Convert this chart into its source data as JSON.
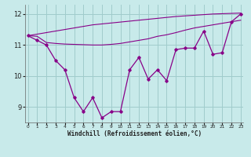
{
  "xlabel": "Windchill (Refroidissement éolien,°C)",
  "bg_color": "#c8eaea",
  "grid_color": "#a0cccc",
  "line_color": "#880088",
  "x_hours": [
    0,
    1,
    2,
    3,
    4,
    5,
    6,
    7,
    8,
    9,
    10,
    11,
    12,
    13,
    14,
    15,
    16,
    17,
    18,
    19,
    20,
    21,
    22,
    23
  ],
  "windchill": [
    11.3,
    11.15,
    11.0,
    10.5,
    10.2,
    9.3,
    8.85,
    9.3,
    8.65,
    8.85,
    8.85,
    10.2,
    10.6,
    9.9,
    10.2,
    9.85,
    10.85,
    10.9,
    10.9,
    11.45,
    10.7,
    10.75,
    11.75,
    12.0
  ],
  "line_upper": [
    11.3,
    11.35,
    11.4,
    11.45,
    11.5,
    11.55,
    11.6,
    11.65,
    11.68,
    11.71,
    11.74,
    11.77,
    11.8,
    11.83,
    11.86,
    11.89,
    11.92,
    11.94,
    11.96,
    11.98,
    12.0,
    12.01,
    12.02,
    12.03
  ],
  "line_lower": [
    11.3,
    11.28,
    11.08,
    11.05,
    11.03,
    11.02,
    11.01,
    11.0,
    11.0,
    11.02,
    11.05,
    11.1,
    11.15,
    11.2,
    11.28,
    11.33,
    11.4,
    11.48,
    11.55,
    11.6,
    11.65,
    11.7,
    11.75,
    11.8
  ],
  "ylim": [
    8.5,
    12.3
  ],
  "yticks": [
    9,
    10,
    11,
    12
  ],
  "xlim": [
    -0.3,
    23.3
  ]
}
